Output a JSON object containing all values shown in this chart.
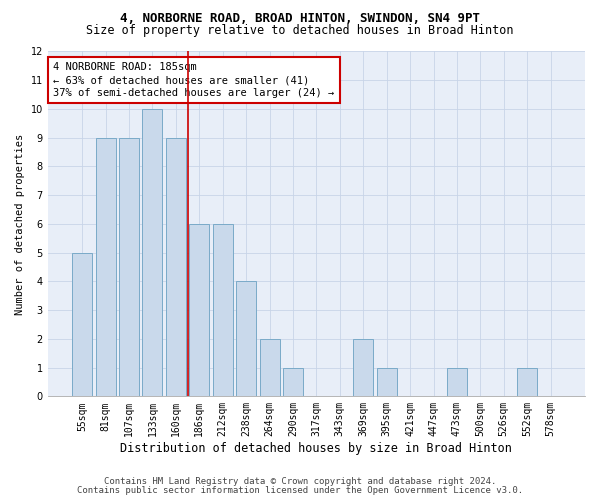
{
  "title1": "4, NORBORNE ROAD, BROAD HINTON, SWINDON, SN4 9PT",
  "title2": "Size of property relative to detached houses in Broad Hinton",
  "xlabel": "Distribution of detached houses by size in Broad Hinton",
  "ylabel": "Number of detached properties",
  "categories": [
    "55sqm",
    "81sqm",
    "107sqm",
    "133sqm",
    "160sqm",
    "186sqm",
    "212sqm",
    "238sqm",
    "264sqm",
    "290sqm",
    "317sqm",
    "343sqm",
    "369sqm",
    "395sqm",
    "421sqm",
    "447sqm",
    "473sqm",
    "500sqm",
    "526sqm",
    "552sqm",
    "578sqm"
  ],
  "values": [
    5,
    9,
    9,
    10,
    9,
    6,
    6,
    4,
    2,
    1,
    0,
    0,
    2,
    1,
    0,
    0,
    1,
    0,
    0,
    1,
    0
  ],
  "bar_color": "#c9d9eb",
  "bar_edge_color": "#7aaac8",
  "highlight_index": 5,
  "highlight_line_color": "#cc0000",
  "ylim": [
    0,
    12
  ],
  "yticks": [
    0,
    1,
    2,
    3,
    4,
    5,
    6,
    7,
    8,
    9,
    10,
    11,
    12
  ],
  "annotation_box_text": "4 NORBORNE ROAD: 185sqm\n← 63% of detached houses are smaller (41)\n37% of semi-detached houses are larger (24) →",
  "annotation_box_color": "#cc0000",
  "annotation_box_fill": "#ffffff",
  "grid_color": "#c8d4e8",
  "background_color": "#e8eef8",
  "footer1": "Contains HM Land Registry data © Crown copyright and database right 2024.",
  "footer2": "Contains public sector information licensed under the Open Government Licence v3.0.",
  "title1_fontsize": 9,
  "title2_fontsize": 8.5,
  "xlabel_fontsize": 8.5,
  "ylabel_fontsize": 7.5,
  "tick_fontsize": 7,
  "annotation_fontsize": 7.5,
  "footer_fontsize": 6.5
}
